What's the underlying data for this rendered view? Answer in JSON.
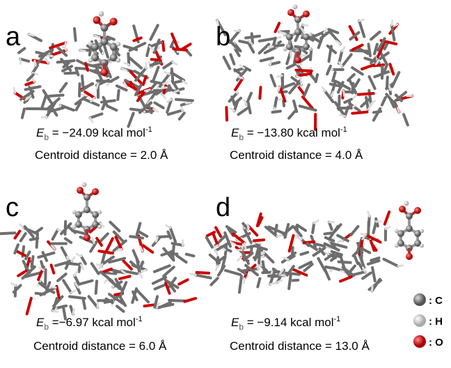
{
  "panels": [
    {
      "label": "a",
      "energy_symbol": "E",
      "energy_subscript": "b",
      "energy_text": " = −24.09  kcal mol",
      "energy_superscript": "-1",
      "distance": "Centroid distance = 2.0 Å"
    },
    {
      "label": "b",
      "energy_symbol": "E",
      "energy_subscript": "b",
      "energy_text": " = −13.80 kcal mol",
      "energy_superscript": "-1",
      "distance": "Centroid distance = 4.0 Å"
    },
    {
      "label": "c",
      "energy_symbol": "E",
      "energy_subscript": "b",
      "energy_text": " =−6.97 kcal mol",
      "energy_superscript": "-1",
      "distance": "Centroid distance = 6.0 Å"
    },
    {
      "label": "d",
      "energy_symbol": "E",
      "energy_subscript": "b",
      "energy_text": " = −9.14 kcal mol",
      "energy_superscript": "-1",
      "distance": "Centroid distance = 13.0 Å"
    }
  ],
  "legend": [
    ": C",
    ": H",
    ": O"
  ]
}
